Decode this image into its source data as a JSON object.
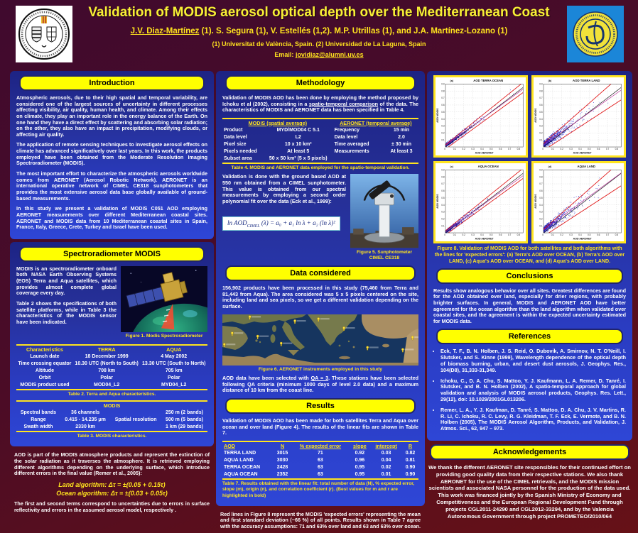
{
  "header": {
    "title": "Validation of MODIS aerosol optical depth over the Mediterranean Coast",
    "authors_lead": "J.V. Diaz-Martínez",
    "authors_rest": " (1). S. Segura (1), V. Estellés (1,2). M.P. Utrillas (1), and J.A. Martínez-Lozano (1)",
    "affiliations": "(1) Universitat de València, Spain. (2) Universidad de La Laguna, Spain",
    "email_label": "Email: ",
    "email": "jovidiaz@alumni.uv.es"
  },
  "intro": {
    "heading": "Introduction",
    "paragraphs": [
      "Atmospheric aerosols, due to their high spatial and temporal variability, are considered one of the largest sources of uncertainty in different processes affecting visibility, air quality, human health, and climate. Among their effects on climate, they play an important role in the energy balance of the Earth. On one hand they have a direct effect by scattering and absorbing solar radiation; on the other, they also have an impact in precipitation, modifying clouds, or affecting air quality.",
      "The application of remote sensing techniques to investigate aerosol effects on climate has advanced significatively over last years. In this work, the products employed have been obtained from the Moderate Resolution Imaging Spectroradiometer (MODIS).",
      "The most important effort to characterize the atmospheric aerosols worldwide comes from AERONET (Aerosol Robotic Network). AERONET is an international operative network of CIMEL CE318 sunphotometers that provides the most extensive aerosol data base globally available of ground-based measurements.",
      "In this study we present a validation of MODIS C051 AOD employing AERONET measurements over different Mediterranean coastal sites. AERONET and MODIS data from 10 Mediterranean coastal sites in Spain, France, Italy, Greece, Crete, Turkey and Israel have been used."
    ]
  },
  "spectro": {
    "heading": "Spectroradiometer  MODIS",
    "p1": "MODIS is an spectroradiometer onboard both NASA Earth Observing Systems (EOS) Terra and Aqua satellites, which provides almost complete global coverage every day.",
    "p2": "Table 2 shows the specifications of both satellite platforms, while in Table 3 the characteristics of the MODIS sensor have been indicated.",
    "fig1_caption": "Figure 1. Modis Spectroradiometer",
    "table2": {
      "headers": [
        "Characteristics",
        "TERRA",
        "AQUA"
      ],
      "rows": [
        [
          "Launch date",
          "18 December 1999",
          "4 May 2002"
        ],
        [
          "Time crossing equator",
          "10.30 UTC (North to South)",
          "13.30 UTC (South to North)"
        ],
        [
          "Altitude",
          "708 km",
          "705 km"
        ],
        [
          "Orbit",
          "Polar",
          "Polar"
        ],
        [
          "MODIS product used",
          "MOD04_L2",
          "MYD04_L2"
        ]
      ],
      "caption": "Table 2. Terra and Aqua characteristics."
    },
    "table3": {
      "title": "MODIS",
      "rows": [
        [
          "Spectral bands",
          "36 channels",
          "",
          "250 m (2 bands)"
        ],
        [
          "Range",
          "0.415 - 14.235 μm",
          "Spatial resolution",
          "500 m (5 bands)"
        ],
        [
          "Swath width",
          "2330 km",
          "",
          "1 km (29 bands)"
        ]
      ],
      "caption": "Table 3. MODIS characteristics."
    }
  },
  "aod_uncertainty": {
    "p1": "AOD is part of the MODIS atmosphere products and represent the extinction of the solar radiation as it traverses the atmosphere. It is retrieved employing different algorithms depending on the underlying surface, which introduce different errors in the final value (Remer et al., 2005):",
    "land_label": "Land algorithm: ",
    "land_formula": "Δτ = ±(0.05 + 0.15τ)",
    "ocean_label": "Ocean algorithm: ",
    "ocean_formula": "Δτ = ±(0.03 + 0.05τ)",
    "p2": "The first and second terms correspond to uncertainties due to errors in surface reflectivity and errors in the assumed aerosol model, respectively ."
  },
  "methodology": {
    "heading": "Methodology",
    "p1_pre": "Validation of MODIS AOD has been done by employing the method proposed by Ichoku et al (2002), consisting in a ",
    "p1_underlined": "spatio-temporal comparison",
    "p1_post": " of the data. The characteristics of MODIS and AERONET data has been specified in Table 4.",
    "table4": {
      "header_left": "MODIS (spatial average)",
      "header_right": "AERONET (temporal average)",
      "rows": [
        [
          "Product",
          "MYD/MOD04  C 5.1",
          "Frequency",
          "15 min"
        ],
        [
          "Data level",
          "L2",
          "Data level",
          "2.0"
        ],
        [
          "Pixel size",
          "10 x 10 km²",
          "Time averaged",
          "± 30 min"
        ],
        [
          "Pixels needed",
          "At least 5",
          "Measurements",
          "At least 3"
        ],
        [
          "Subset area",
          "50 x 50 km² (5 x 5 pixels)",
          "",
          ""
        ]
      ],
      "caption": "Table 4. MODIS and AERONET data employed for the spatio-temporal validation."
    },
    "p2_pre": "Validation is done with the ground based AOD at 550 nm obtained from a CIMEL sunphotometer. This value is obtained from our spectral measurements by employing a ",
    "p2_bold": "second order polynomial fit",
    "p2_post": " over the data (Eck et al., 1999):",
    "formula": {
      "lhs": "ln AOD",
      "sub": "CIMEL",
      "rhs": " (λ) = a₀ + a₁ ln λ + a₂ (ln λ)²"
    },
    "fig5_caption": "Figure 5. Sunphotometer CIMEL CE318"
  },
  "data_considered": {
    "heading": "Data considered",
    "p1": "156,902 products have been processed in this study (75,460 from Terra and 81,443 from Aqua). The area considered was 5 x 5 pixels centered on the site, including land and sea pixels, so we get a different validation depending on the surface.",
    "fig6_caption": "Figure 6. AERONET instruments employed in this study",
    "map_pins": [
      [
        14,
        10
      ],
      [
        5,
        42
      ],
      [
        1,
        64
      ],
      [
        18,
        48
      ],
      [
        30,
        62
      ],
      [
        37,
        18
      ],
      [
        49,
        14
      ],
      [
        62,
        32
      ],
      [
        74,
        70
      ],
      [
        92,
        74
      ],
      [
        97,
        50
      ]
    ],
    "p2_pre": "AOD data have been selected with ",
    "p2_underlined": "QA = 3",
    "p2_post": ". These stations have been selected following QA criteria (minimum 1000 days of level 2.0 data) and a maximum distance of 10 km from the coast line."
  },
  "results": {
    "heading": "Results",
    "p1": "Validation of MODIS AOD has been made for both satellites Terra and Aqua over ocean and over land (Figure 4). The results of the linear fits are shown in Table 7.",
    "table7": {
      "headers": [
        "AOD",
        "N",
        "% expected error",
        "slope",
        "intercept",
        "R"
      ],
      "rows": [
        [
          "TERRA LAND",
          "3015",
          "71",
          "0.92",
          "0.03",
          "0.82"
        ],
        [
          "AQUA LAND",
          "3030",
          "63",
          "0.96",
          "0.04",
          "0.81"
        ],
        [
          "TERRA OCEAN",
          "2428",
          "63",
          "0.95",
          "0.02",
          "0.90"
        ],
        [
          "AQUA OCEAN",
          "2352",
          "63",
          "0.95",
          "0.01",
          "0.90"
        ]
      ],
      "caption": "Table 7. Results obtained with the linear fit: total number of data (N), % expected error, slope (m), origin (n), and correlation coefficient (r). (Best values for m and r are highlighted in bold)"
    },
    "p2": "Red lines in Figure 8 represent the MODIS 'expected errors' representing the mean and first standard deviation (~66 %) of all points. Results shown in Table 7 agree with the accuracy assumptions: 71 and 63% over land and 63 and 63% over ocean."
  },
  "figure8": {
    "caption": "Figure 8. Validation of MODIS AOD for both satellites and both algorithms with the lines for 'expected errors': (a) Terra's AOD over OCEAN,  (b) Terra's AOD over LAND, (c) Aqua's AOD over OCEAN, and  (d) Aqua's AOD over LAND.",
    "xlabel": "AOD AERONET",
    "ylabel": "AOD MODIS",
    "xlim": [
      0,
      0.85
    ],
    "ylim": [
      0,
      0.9
    ],
    "tick_step": 0.1,
    "error_model": {
      "ocean": [
        0.03,
        0.05
      ],
      "land": [
        0.05,
        0.15
      ]
    },
    "plots": [
      {
        "panel": "(a)",
        "title": "AOD TERRA OCEAN",
        "surface": "ocean",
        "slope": 0.95,
        "intercept": 0.02,
        "r": 0.9,
        "n": 2428
      },
      {
        "panel": "(b)",
        "title": "AOD TERRA LAND",
        "surface": "land",
        "slope": 0.92,
        "intercept": 0.03,
        "r": 0.82,
        "n": 3015
      },
      {
        "panel": "(c)",
        "title": "AQUA OCEAN",
        "surface": "ocean",
        "slope": 0.95,
        "intercept": 0.01,
        "r": 0.9,
        "n": 2352
      },
      {
        "panel": "(d)",
        "title": "AQUA LAND",
        "surface": "land",
        "slope": 0.96,
        "intercept": 0.04,
        "r": 0.81,
        "n": 3030
      }
    ]
  },
  "conclusions": {
    "heading": "Conclusions",
    "p1": "Results show analogous behavior over all sites. Greatest differences are found for the AOD obtained over land, especially for drier regions, with probably brighter surfaces. In general, MODIS and AERONET AOD have better agreement for the ocean algorithm than the land algorithm when validated over coastal sites, and the agreement is within the expected uncertainty estimated for MODIS data."
  },
  "references": {
    "heading": "References",
    "items": [
      "Eck, T. F., B. N. Holben, J. S. Reid, O. Dubovik, A. Smirnov, N. T. O'Neill, I. Slutsker, and S. Kinne (1999), Wavelength dependence of the optical depth of biomass burning, urban, and desert dust aerosols, J. Geophys. Res., 104(D8), 31,333-31,349.",
      "Ichoku, C., D. A. Chu, S. Mattoo, Y. J. Kaufmann, L. A. Remer, D. Tanré, I. Slutsker, and B. N. Holben (2002), A spatio-temporal approach for global validation and analysis of MODIS aerosol products, Geophys. Res. Lett., 29(12), doi: 10.1029/2001GL013206.",
      "Remer, L. A., Y. J. Kaufman, D. Tanré, S. Mattoo, D. A. Chu, J. V. Martins, R. R. Li, C. Ichoku, R. C. Levy, R. G. Kleidman, T. F. Eck, E. Vermote, and B. N. Holben (2005), The MODIS Aerosol Algorithm, Products, and Validation, J. Atmos. Sci., 62, 947 – 973."
    ]
  },
  "acknowledgements": {
    "heading": "Acknowledgements",
    "text": "We thank the different AERONET site responsibles for their continued effort on providing good quality data from their respective stations. We also thank AERONET for the use of the CIMEL retrievals, and the MODIS mission scientists and associated NASA personnel for the production of the data used. This work was financed jointly by the Spanish Ministry of Economy and Competitiveness and the European Regional Development Fund through projects CGL2011-24290  and  CGL2012-33294, and  by the Valencia Autonomous Government through project PROMETEO/2010/064"
  }
}
